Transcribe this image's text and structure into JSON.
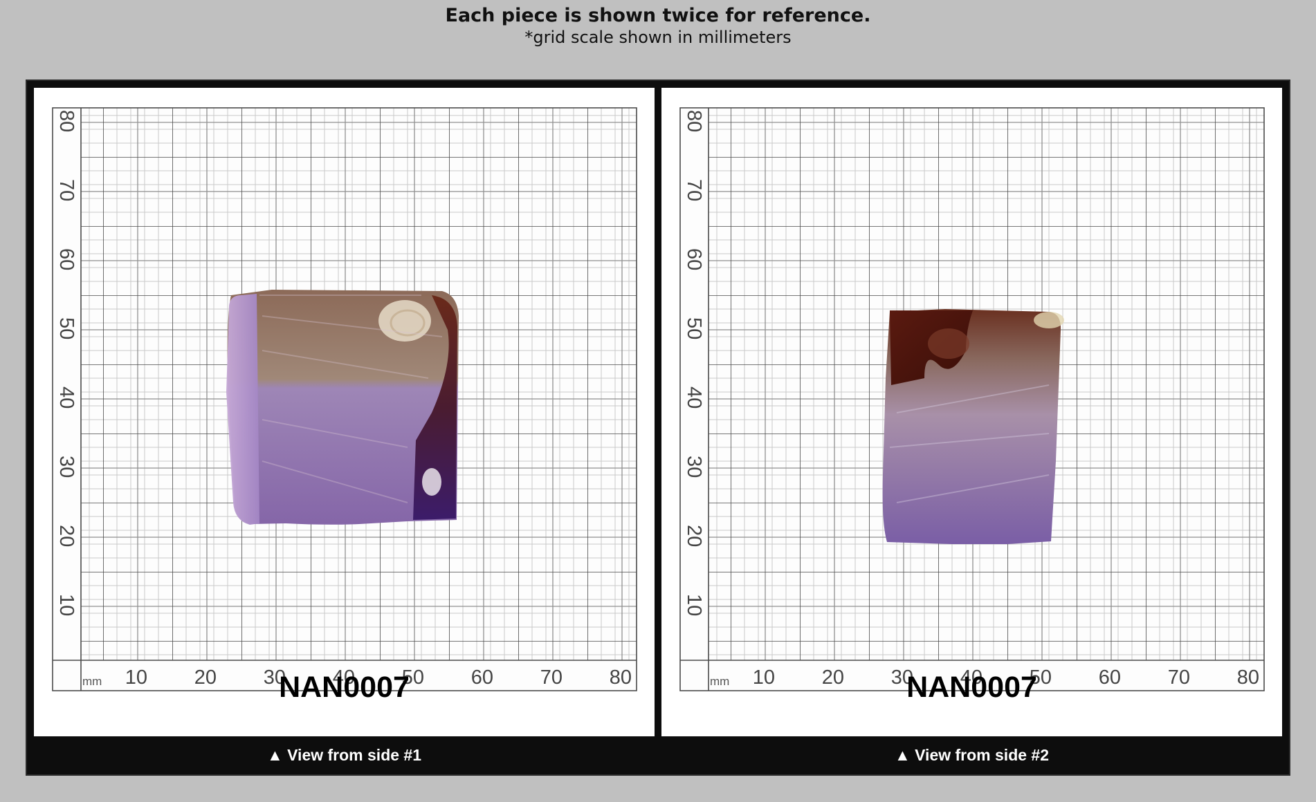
{
  "header": {
    "title": "Each piece is shown twice for reference.",
    "subtitle": "*grid scale shown in millimeters"
  },
  "views": [
    {
      "specimen_id": "NAN0007",
      "caption": "▲ View from side #1",
      "grid": {
        "unit": "mm",
        "x_labels": [
          "10",
          "20",
          "30",
          "40",
          "50",
          "60",
          "70",
          "80"
        ],
        "y_labels": [
          "10",
          "20",
          "30",
          "40",
          "50",
          "60",
          "70",
          "80"
        ]
      }
    },
    {
      "specimen_id": "NAN0007",
      "caption": "▲ View from side #2",
      "grid": {
        "unit": "mm",
        "x_labels": [
          "10",
          "20",
          "30",
          "40",
          "50",
          "60",
          "70",
          "80"
        ],
        "y_labels": [
          "10",
          "20",
          "30",
          "40",
          "50",
          "60",
          "70",
          "80"
        ]
      }
    }
  ],
  "colors": {
    "background": "#c0c0c0",
    "frame": "#0d0d0d",
    "grid_major": "#5a5a5a",
    "grid_minor": "#d6d6d6",
    "specimen_purple": "#8a6ab0",
    "specimen_brown": "#5a2a1c"
  }
}
